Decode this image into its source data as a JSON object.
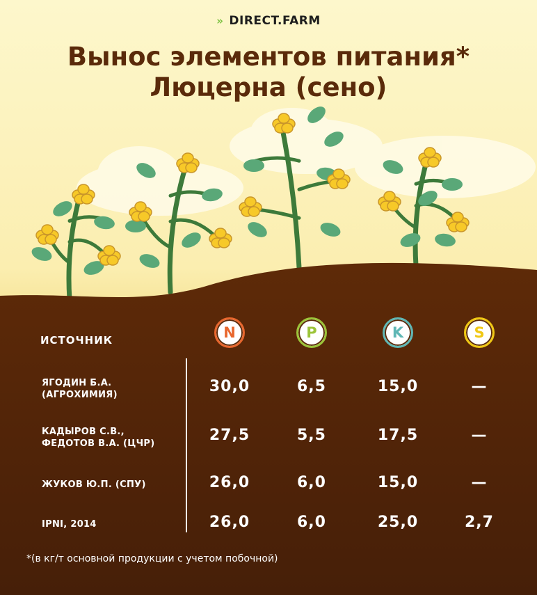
{
  "logo": {
    "text": "DIRECT.FARM",
    "icon": "chevrons-right-icon"
  },
  "title": {
    "line1": "Вынос элементов питания*",
    "line2": "Люцерна (сено)"
  },
  "table": {
    "source_header": "ИСТОЧНИК",
    "elements": [
      {
        "label": "N",
        "color": "#e8672e"
      },
      {
        "label": "P",
        "color": "#9cc43a"
      },
      {
        "label": "K",
        "color": "#5fb7b5"
      },
      {
        "label": "S",
        "color": "#f0c814"
      }
    ],
    "rows": [
      {
        "source": [
          "ЯГОДИН Б.А.",
          "(АГРОХИМИЯ)"
        ],
        "values": [
          "30,0",
          "6,5",
          "15,0",
          "—"
        ]
      },
      {
        "source": [
          "КАДЫРОВ С.В.,",
          "ФЕДОТОВ В.А. (ЦЧР)"
        ],
        "values": [
          "27,5",
          "5,5",
          "17,5",
          "—"
        ]
      },
      {
        "source": [
          "ЖУКОВ Ю.П. (СПУ)",
          ""
        ],
        "values": [
          "26,0",
          "6,0",
          "15,0",
          "—"
        ]
      },
      {
        "source": [
          "IPNI, 2014",
          ""
        ],
        "values": [
          "26,0",
          "6,0",
          "25,0",
          "2,7"
        ]
      }
    ]
  },
  "footnote": "*(в кг/т основной продукции с учетом побочной)",
  "colors": {
    "soil": "#5a2a0a",
    "sky": "#fdf6c6",
    "stem": "#3d7a3a",
    "leaf": "#5aa878",
    "flower": "#f7c928"
  }
}
